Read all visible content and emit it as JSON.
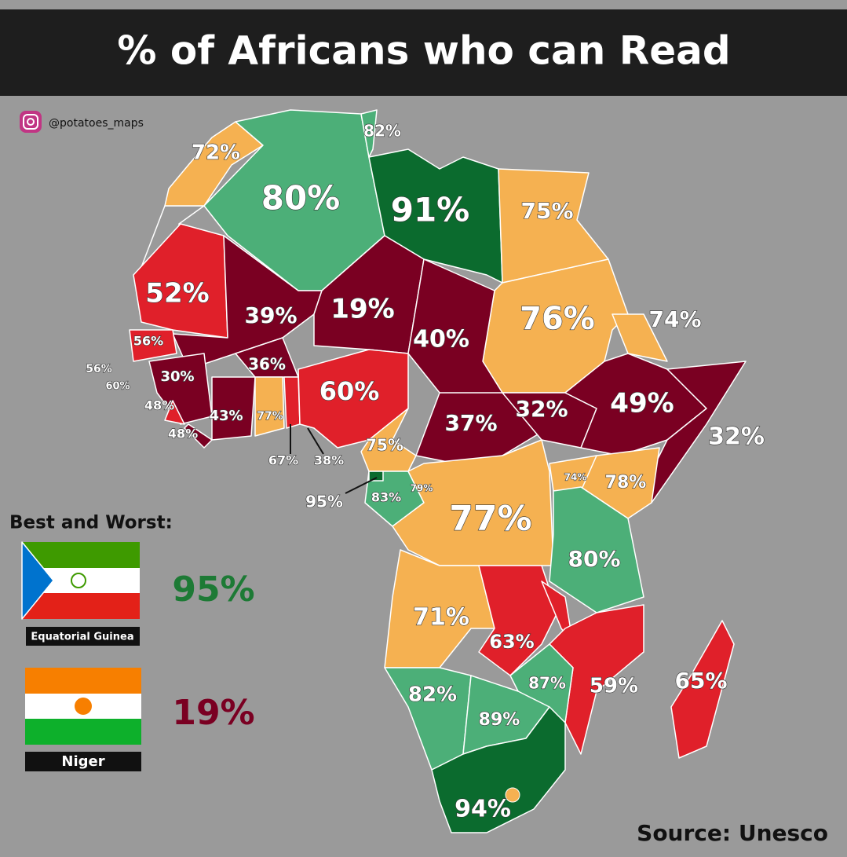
{
  "header": {
    "title": "% of Africans who can Read"
  },
  "credit": "@potatoes_maps",
  "source": "Source: Unesco",
  "map": {
    "labels": [
      "72%",
      "82%",
      "80%",
      "91%",
      "75%",
      "52%",
      "39%",
      "19%",
      "40%",
      "76%",
      "74%",
      "56%",
      "56%",
      "60%",
      "36%",
      "30%",
      "60%",
      "48%",
      "43%",
      "77%",
      "48%",
      "37%",
      "32%",
      "49%",
      "32%",
      "75%",
      "67%",
      "38%",
      "95%",
      "83%",
      "79%",
      "74%",
      "78%",
      "77%",
      "80%",
      "71%",
      "63%",
      "82%",
      "87%",
      "59%",
      "65%",
      "89%",
      "94%"
    ]
  },
  "best_worst": {
    "heading": "Best and Worst:",
    "best": {
      "country": "Equatorial Guinea",
      "value": "95%"
    },
    "worst": {
      "country": "Niger",
      "value": "19%"
    }
  }
}
